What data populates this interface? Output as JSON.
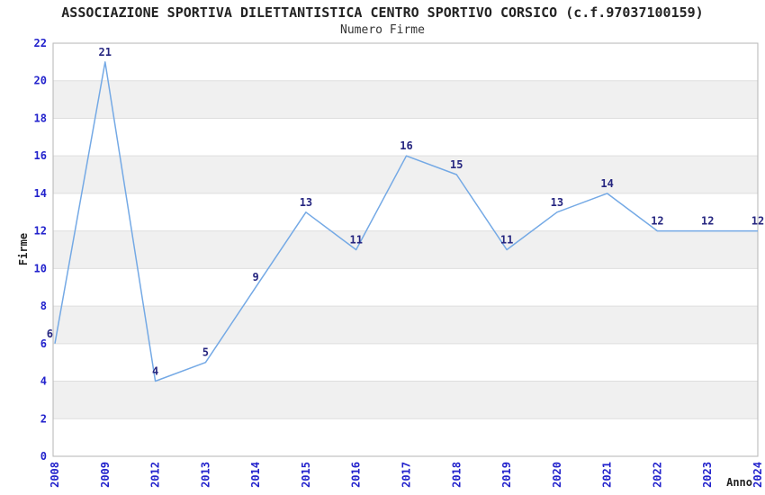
{
  "page": {
    "background": "#ffffff"
  },
  "chart_data": {
    "type": "line",
    "title": "ASSOCIAZIONE SPORTIVA DILETTANTISTICA CENTRO SPORTIVO CORSICO (c.f.97037100159)",
    "subtitle": "Numero Firme",
    "xlabel": "Anno",
    "ylabel": "Firme",
    "categories": [
      "2008",
      "2009",
      "2012",
      "2013",
      "2014",
      "2015",
      "2016",
      "2017",
      "2018",
      "2019",
      "2020",
      "2021",
      "2022",
      "2023",
      "2024"
    ],
    "values": [
      6,
      21,
      4,
      5,
      9,
      13,
      11,
      16,
      15,
      11,
      13,
      14,
      12,
      12,
      12
    ],
    "ylim": [
      0,
      22
    ],
    "ytick_step": 2,
    "yticks": [
      0,
      2,
      4,
      6,
      8,
      10,
      12,
      14,
      16,
      18,
      20,
      22
    ],
    "grid": "alternating-horizontal-bands",
    "legend": "none",
    "data_labels_visible": true,
    "colors": {
      "line": "#74A9E5",
      "data_label": "#262680",
      "tick_label": "#2222CC",
      "band_fill": "#F0F0F0",
      "gridline": "#DEDEDE",
      "plot_border": "#B5B5B5",
      "text": "#222222"
    }
  }
}
